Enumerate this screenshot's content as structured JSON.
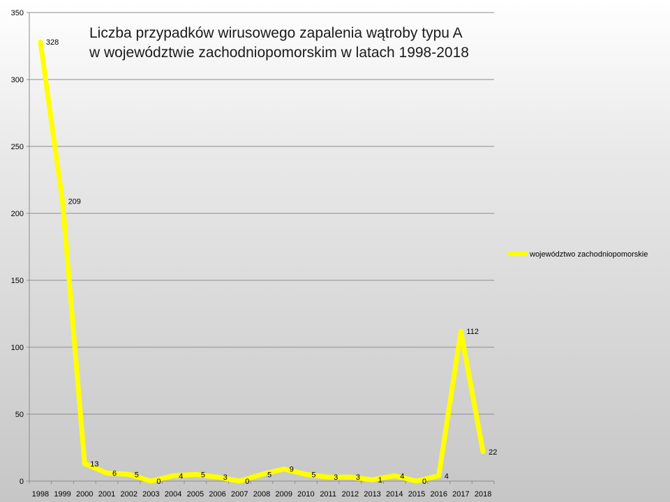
{
  "chart_data": {
    "type": "line",
    "title_lines": [
      "Liczba przypadków wirusowego zapalenia wątroby typu A",
      "w województwie zachodniopomorskim w latach 1998-2018"
    ],
    "xlabel": "",
    "ylabel": "",
    "categories": [
      "1998",
      "1999",
      "2000",
      "2001",
      "2002",
      "2003",
      "2004",
      "2005",
      "2006",
      "2007",
      "2008",
      "2009",
      "2010",
      "2011",
      "2012",
      "2013",
      "2014",
      "2015",
      "2016",
      "2017",
      "2018"
    ],
    "series": [
      {
        "name": "województwo zachodniopomorskie",
        "values": [
          328,
          209,
          13,
          6,
          5,
          0,
          4,
          5,
          3,
          0,
          5,
          9,
          5,
          3,
          3,
          1,
          4,
          0,
          4,
          112,
          22
        ],
        "color": "#ffff00"
      }
    ],
    "ylim": [
      0,
      350
    ],
    "yticks": [
      0,
      50,
      100,
      150,
      200,
      250,
      300,
      350
    ],
    "grid": true,
    "legend_position": "right",
    "data_labels": true
  }
}
